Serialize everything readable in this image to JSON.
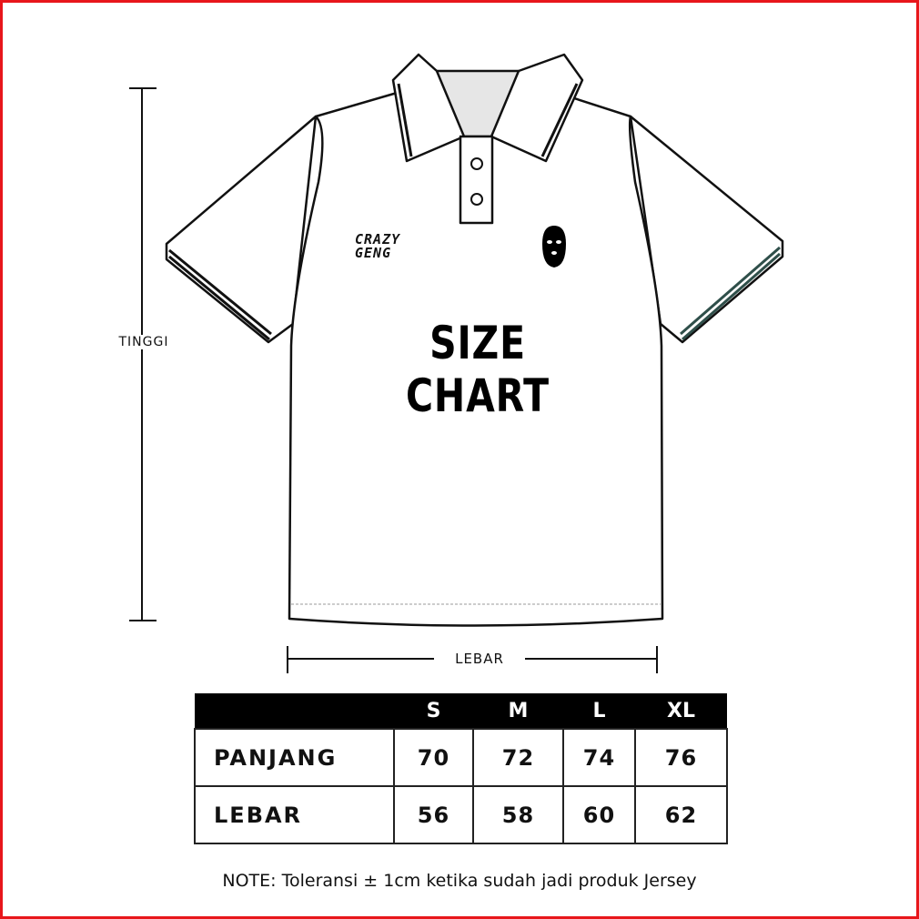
{
  "measure_labels": {
    "height": "TINGGI",
    "width": "LEBAR"
  },
  "shirt": {
    "title": "SIZE CHART",
    "brand_logo": "CRAZY GENG",
    "mask_icon": "balaclava-icon",
    "accent_color": "#2f4f4a"
  },
  "table": {
    "headers": [
      "",
      "S",
      "M",
      "L",
      "XL"
    ],
    "rows": [
      {
        "label": "PANJANG",
        "values": [
          "70",
          "72",
          "74",
          "76"
        ]
      },
      {
        "label": "LEBAR",
        "values": [
          "56",
          "58",
          "60",
          "62"
        ]
      }
    ]
  },
  "note": "NOTE: Toleransi ± 1cm ketika sudah jadi produk Jersey",
  "border_color": "#e8161b"
}
